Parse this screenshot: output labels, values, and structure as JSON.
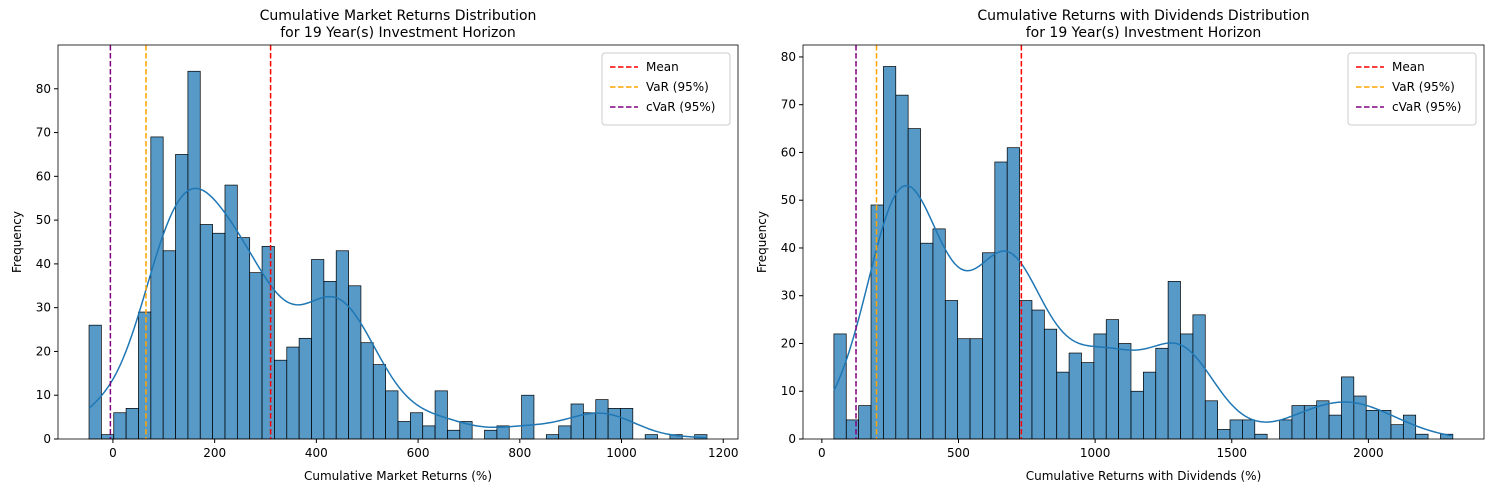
{
  "chart_data": [
    {
      "type": "histogram",
      "title": "Cumulative Market Returns Distribution\nfor 19 Year(s) Investment Horizon",
      "xlabel": "Cumulative Market Returns (%)",
      "ylabel": "Frequency",
      "bins": [
        -47,
        -22.7,
        1.6,
        25.9,
        50.2,
        74.5,
        98.8,
        123.1,
        147.4,
        171.7,
        196,
        220.3,
        244.6,
        268.9,
        293.2,
        317.5,
        341.8,
        366.1,
        390.4,
        414.7,
        439,
        463.3,
        487.6,
        511.9,
        536.2,
        560.5,
        584.8,
        609.1,
        633.4,
        657.7,
        682,
        706.3,
        730.6,
        754.9,
        779.2,
        803.5,
        827.8,
        852.1,
        876.4,
        900.7,
        925,
        949.3,
        973.6,
        997.9,
        1022.2,
        1046.5,
        1070.8,
        1095.1,
        1119.4,
        1143.7,
        1168
      ],
      "values": [
        26,
        1,
        6,
        7,
        29,
        69,
        43,
        65,
        84,
        49,
        47,
        58,
        46,
        38,
        44,
        18,
        21,
        23,
        41,
        36,
        43,
        35,
        22,
        17,
        11,
        4,
        6,
        3,
        11,
        2,
        4,
        0,
        2,
        3,
        0,
        10,
        0,
        1,
        3,
        8,
        6,
        9,
        7,
        7,
        0,
        1,
        0,
        1,
        0,
        1
      ],
      "color": "#1f77b4",
      "xlim": [
        -108,
        1229
      ],
      "ylim": [
        0,
        90
      ],
      "xticks": [
        0,
        200,
        400,
        600,
        800,
        1000,
        1200
      ],
      "yticks": [
        0,
        10,
        20,
        30,
        40,
        50,
        60,
        70,
        80
      ],
      "vlines": [
        {
          "name": "Mean",
          "value": 310,
          "color": "red"
        },
        {
          "name": "VaR (95%)",
          "value": 65,
          "color": "orange"
        },
        {
          "name": "cVaR (95%)",
          "value": -5,
          "color": "purple"
        }
      ],
      "legend": "upper right"
    },
    {
      "type": "histogram",
      "title": "Cumulative Returns with Dividends Distribution\nfor 19 Year(s) Investment Horizon",
      "xlabel": "Cumulative Returns with Dividends (%)",
      "ylabel": "Frequency",
      "bins": [
        44,
        89.3,
        134.6,
        179.9,
        225.2,
        270.5,
        315.8,
        361.1,
        406.4,
        451.7,
        497,
        542.3,
        587.6,
        632.9,
        678.2,
        723.5,
        768.8,
        814.1,
        859.4,
        904.7,
        950,
        995.3,
        1040.6,
        1085.9,
        1131.2,
        1176.5,
        1221.8,
        1267.1,
        1312.4,
        1357.7,
        1403,
        1448.3,
        1493.6,
        1538.9,
        1584.2,
        1629.5,
        1674.8,
        1720.1,
        1765.4,
        1810.7,
        1856,
        1901.3,
        1946.6,
        1991.9,
        2037.2,
        2082.5,
        2127.8,
        2173.1,
        2218.4,
        2263.7,
        2309
      ],
      "values": [
        22,
        4,
        7,
        49,
        78,
        72,
        65,
        41,
        44,
        29,
        21,
        21,
        39,
        58,
        61,
        29,
        27,
        23,
        14,
        18,
        16,
        22,
        25,
        20,
        10,
        14,
        19,
        33,
        22,
        26,
        8,
        2,
        4,
        4,
        1,
        0,
        4,
        7,
        7,
        8,
        5,
        13,
        9,
        6,
        6,
        3,
        5,
        1,
        0,
        1
      ],
      "color": "#1f77b4",
      "xlim": [
        -69,
        2423
      ],
      "ylim": [
        0,
        82.5
      ],
      "xticks": [
        0,
        500,
        1000,
        1500,
        2000
      ],
      "yticks": [
        0,
        10,
        20,
        30,
        40,
        50,
        60,
        70,
        80
      ],
      "vlines": [
        {
          "name": "Mean",
          "value": 730,
          "color": "red"
        },
        {
          "name": "VaR (95%)",
          "value": 200,
          "color": "orange"
        },
        {
          "name": "cVaR (95%)",
          "value": 125,
          "color": "purple"
        }
      ],
      "legend": "upper right"
    }
  ]
}
